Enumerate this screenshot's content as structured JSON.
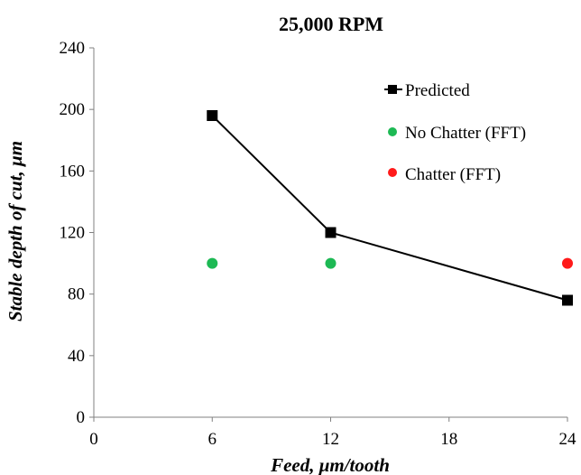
{
  "chart_data": {
    "type": "scatter",
    "title": "25,000 RPM",
    "xlabel": "Feed, μm/tooth",
    "ylabel": "Stable depth of cut, μm",
    "xlim": [
      0,
      24
    ],
    "ylim": [
      0,
      240
    ],
    "xticks": [
      "0",
      "6",
      "12",
      "18",
      "24"
    ],
    "yticks": [
      "0",
      "40",
      "80",
      "120",
      "160",
      "200",
      "240"
    ],
    "grid": false,
    "legend_position": "top-right",
    "series": [
      {
        "name": "Predicted",
        "style": "line-square",
        "color": "#000000",
        "x": [
          6,
          12,
          24
        ],
        "y": [
          196,
          120,
          76
        ]
      },
      {
        "name": "No Chatter (FFT)",
        "style": "marker-circle",
        "color": "#1db954",
        "x": [
          6,
          12
        ],
        "y": [
          100,
          100
        ]
      },
      {
        "name": "Chatter (FFT)",
        "style": "marker-circle",
        "color": "#ff1a1a",
        "x": [
          24
        ],
        "y": [
          100
        ]
      }
    ]
  }
}
